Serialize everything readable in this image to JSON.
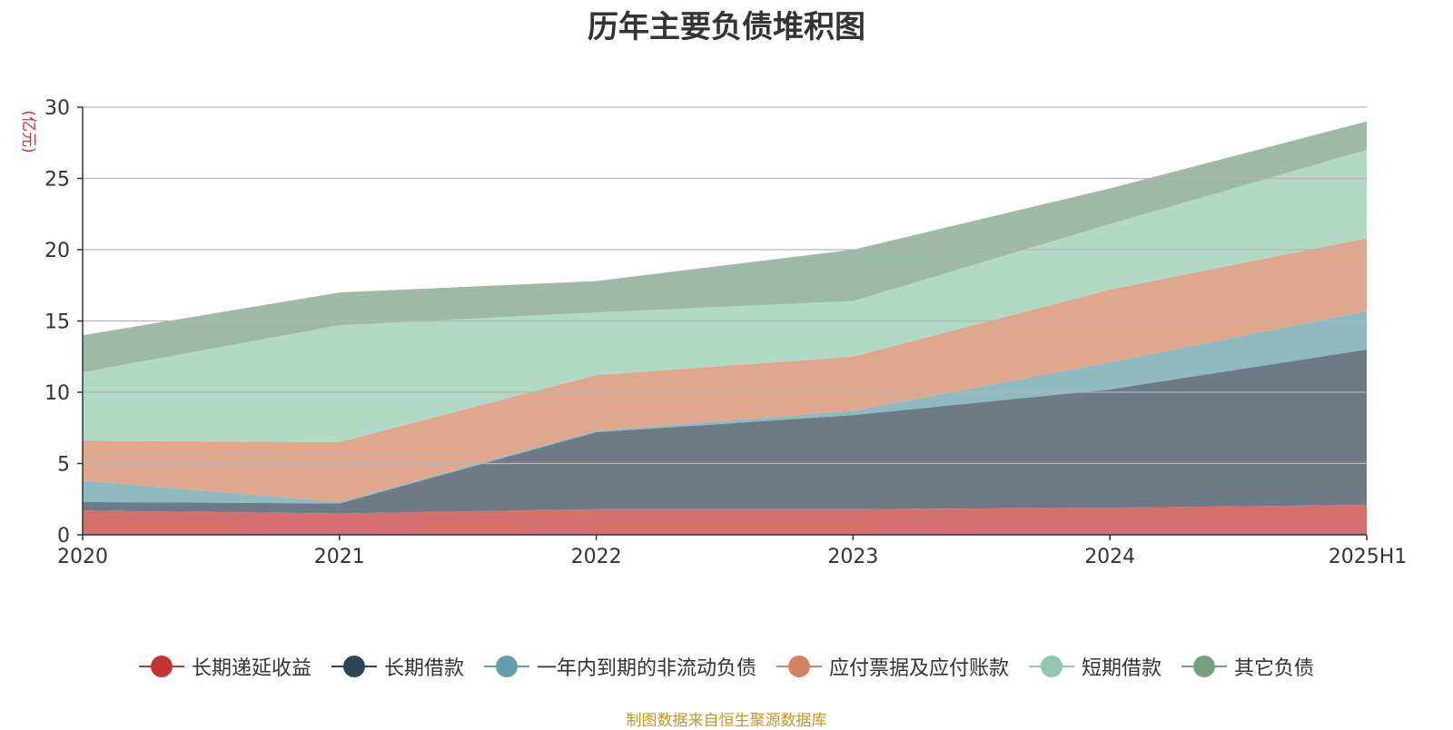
{
  "source_note": "制图数据来自恒生聚源数据库",
  "chart_data": {
    "type": "area",
    "stacked": true,
    "title": "历年主要负债堆积图",
    "ylabel": "(亿元)",
    "xlabel": "",
    "categories": [
      "2020",
      "2021",
      "2022",
      "2023",
      "2024",
      "2025H1"
    ],
    "ylim": [
      0,
      30
    ],
    "yticks": [
      0,
      5,
      10,
      15,
      20,
      25,
      30
    ],
    "grid": true,
    "legend_position": "bottom",
    "series": [
      {
        "name": "长期递延收益",
        "color": "#c23531",
        "fill": "#d4706e",
        "values": [
          1.7,
          1.5,
          1.8,
          1.8,
          1.9,
          2.1
        ]
      },
      {
        "name": "长期借款",
        "color": "#2f4554",
        "fill": "#6e7b87",
        "values": [
          0.6,
          0.7,
          5.4,
          6.6,
          8.3,
          10.9
        ]
      },
      {
        "name": "一年内到期的非流动负债",
        "color": "#61a0a8",
        "fill": "#8fbac0",
        "values": [
          1.5,
          0.1,
          0.1,
          0.3,
          1.9,
          2.7
        ]
      },
      {
        "name": "应付票据及应付账款",
        "color": "#d48265",
        "fill": "#e0a78f",
        "values": [
          2.8,
          4.2,
          3.9,
          3.8,
          5.1,
          5.1
        ]
      },
      {
        "name": "短期借款",
        "color": "#91c7ae",
        "fill": "#b2d8c6",
        "values": [
          4.8,
          8.2,
          4.4,
          3.9,
          4.6,
          6.2
        ]
      },
      {
        "name": "其它负债",
        "color": "#749f83",
        "fill": "#9eb9a7",
        "values": [
          2.6,
          2.3,
          2.2,
          3.6,
          2.5,
          2.0
        ]
      }
    ]
  }
}
